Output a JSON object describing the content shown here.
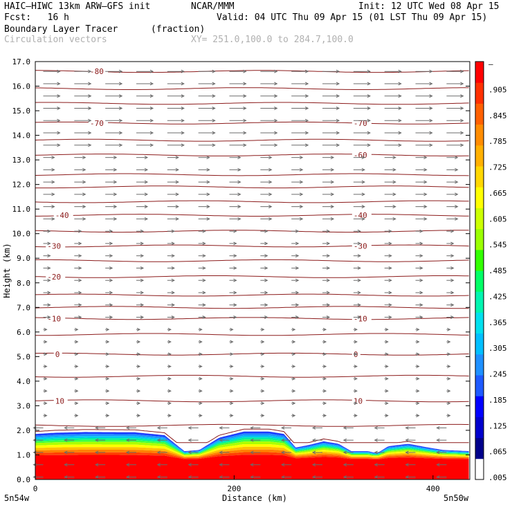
{
  "header": {
    "model": "HAIC–HIWC 13km ARW–GFS init",
    "org": "NCAR/MMM",
    "init": "Init: 12 UTC Wed 08 Apr 15",
    "fcst": "Fcst:   16 h",
    "valid": "Valid: 04 UTC Thu 09 Apr 15 (01 LST Thu 09 Apr 15)",
    "field": "Boundary Layer Tracer",
    "units": "(fraction)",
    "vectors": "Circulation vectors",
    "xy": "XY= 251.0,100.0 to 284.7,100.0"
  },
  "colors": {
    "contour": "#8b1a1a",
    "vector": "#6b6b6b",
    "palette": [
      "#ffffff",
      "#00008b",
      "#0000cd",
      "#0000ff",
      "#1e5aff",
      "#1e90ff",
      "#00bfff",
      "#00e0ee",
      "#00f5b0",
      "#00ff66",
      "#32ff00",
      "#9aff00",
      "#ccff00",
      "#ffff00",
      "#ffd700",
      "#ffb000",
      "#ff8c00",
      "#ff6000",
      "#ff3000",
      "#ff0000"
    ]
  },
  "chart_data": {
    "type": "cross-section",
    "ylabel": "Height (km)",
    "xlabel": "Distance (km)",
    "y_ticks": [
      "0.0",
      "1.0",
      "2.0",
      "3.0",
      "4.0",
      "5.0",
      "6.0",
      "7.0",
      "8.0",
      "9.0",
      "10.0",
      "11.0",
      "12.0",
      "13.0",
      "14.0",
      "15.0",
      "16.0",
      "17.0"
    ],
    "x_ticks": [
      "0",
      "200",
      "400"
    ],
    "x_tick_values": [
      0,
      200,
      400
    ],
    "xlim": [
      0,
      437
    ],
    "ylim": [
      0,
      17
    ],
    "x_left_label": "5n54w",
    "x_right_label": "5n50w",
    "colorbar_labels": [
      "–",
      ".905",
      ".845",
      ".785",
      ".725",
      ".665",
      ".605",
      ".545",
      ".485",
      ".425",
      ".365",
      ".305",
      ".245",
      ".185",
      ".125",
      ".065",
      ".005"
    ],
    "tracer_top_km": [
      [
        0,
        1.85
      ],
      [
        20,
        1.9
      ],
      [
        50,
        1.93
      ],
      [
        100,
        1.92
      ],
      [
        130,
        1.8
      ],
      [
        150,
        1.15
      ],
      [
        165,
        1.2
      ],
      [
        185,
        1.7
      ],
      [
        210,
        1.95
      ],
      [
        235,
        1.95
      ],
      [
        250,
        1.85
      ],
      [
        262,
        1.3
      ],
      [
        275,
        1.4
      ],
      [
        290,
        1.55
      ],
      [
        305,
        1.45
      ],
      [
        318,
        1.15
      ],
      [
        335,
        1.15
      ],
      [
        340,
        1.1
      ],
      [
        345,
        1.1
      ],
      [
        355,
        1.35
      ],
      [
        375,
        1.45
      ],
      [
        395,
        1.3
      ],
      [
        410,
        1.2
      ],
      [
        437,
        1.15
      ]
    ],
    "isotherms": [
      {
        "label": "10",
        "y": 3.2,
        "label_x": [
          20,
          320
        ]
      },
      {
        "label": "0",
        "y": 5.1,
        "label_x": [
          20,
          320
        ]
      },
      {
        "label": "-10",
        "y": 6.55,
        "label_x": [
          12,
          320
        ]
      },
      {
        "label": "-20",
        "y": 8.25,
        "label_x": [
          12,
          null
        ]
      },
      {
        "label": "-30",
        "y": 9.5,
        "label_x": [
          12,
          320
        ]
      },
      {
        "label": "-40",
        "y": 10.75,
        "label_x": [
          20,
          320
        ]
      },
      {
        "label": "-60",
        "y": 13.2,
        "label_x": [
          null,
          320
        ]
      },
      {
        "label": "-70",
        "y": 14.5,
        "label_x": [
          55,
          320
        ]
      },
      {
        "label": "-80",
        "y": 16.6,
        "label_x": [
          55,
          null
        ]
      }
    ],
    "extra_isotherm_heights": [
      2.2,
      4.2,
      5.9,
      7.0,
      7.5,
      8.9,
      10.1,
      11.3,
      11.9,
      12.4,
      13.8,
      15.3,
      15.9
    ]
  }
}
